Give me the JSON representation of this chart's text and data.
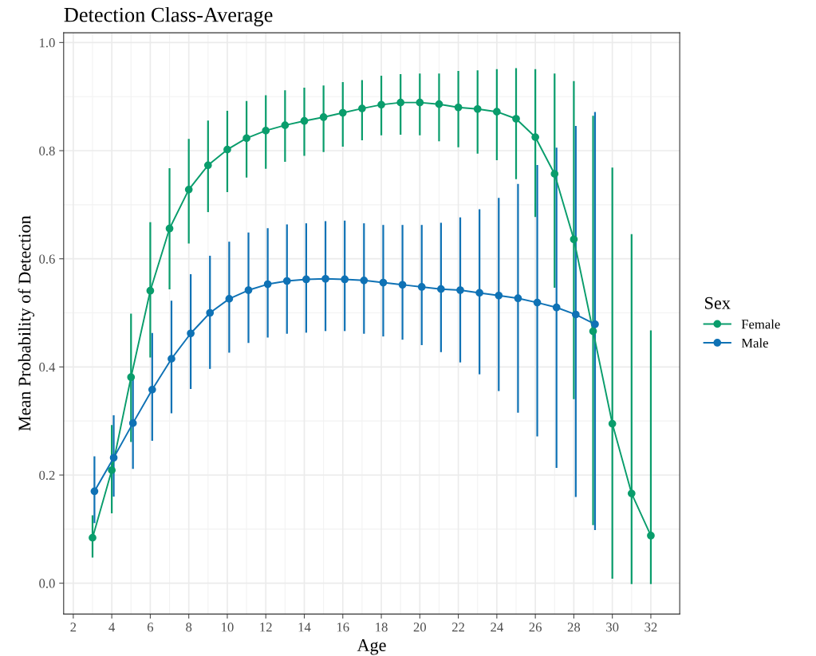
{
  "chart_data": {
    "type": "line",
    "title": "Detection Class-Average",
    "xlabel": "Age",
    "ylabel": "Mean Probability of Detection",
    "legend_title": "Sex",
    "xlim": [
      1.5,
      33.5
    ],
    "xticks": [
      2,
      4,
      6,
      8,
      10,
      12,
      14,
      16,
      18,
      20,
      22,
      24,
      26,
      28,
      30,
      32
    ],
    "ylim": [
      -0.057,
      1.018
    ],
    "yticks": [
      {
        "value": 0,
        "label": "0.0"
      },
      {
        "value": 0.2,
        "label": "0.2"
      },
      {
        "value": 0.4,
        "label": "0.4"
      },
      {
        "value": 0.6,
        "label": "0.6"
      },
      {
        "value": 0.8,
        "label": "0.8"
      },
      {
        "value": 1,
        "label": "1.0"
      }
    ],
    "grid": true,
    "legend": "right",
    "marker": "circle",
    "line_style": "solid",
    "series": [
      {
        "name": "Female",
        "color": "#0a9d6c",
        "x": [
          3,
          4,
          5,
          6,
          7,
          8,
          9,
          10,
          11,
          12,
          13,
          14,
          15,
          16,
          17,
          18,
          19,
          20,
          21,
          22,
          23,
          24,
          25,
          26,
          27,
          28,
          29,
          30,
          31,
          32
        ],
        "values": [
          0.084,
          0.209,
          0.381,
          0.541,
          0.656,
          0.728,
          0.773,
          0.802,
          0.823,
          0.837,
          0.847,
          0.855,
          0.862,
          0.87,
          0.878,
          0.885,
          0.889,
          0.889,
          0.886,
          0.88,
          0.877,
          0.872,
          0.859,
          0.825,
          0.757,
          0.636,
          0.466,
          0.295,
          0.166,
          0.088
        ],
        "errors": [
          [
            0.049,
            0.124
          ],
          [
            0.131,
            0.291
          ],
          [
            0.263,
            0.497
          ],
          [
            0.419,
            0.666
          ],
          [
            0.545,
            0.766
          ],
          [
            0.63,
            0.82
          ],
          [
            0.688,
            0.854
          ],
          [
            0.725,
            0.872
          ],
          [
            0.752,
            0.89
          ],
          [
            0.768,
            0.901
          ],
          [
            0.781,
            0.91
          ],
          [
            0.792,
            0.915
          ],
          [
            0.799,
            0.919
          ],
          [
            0.809,
            0.925
          ],
          [
            0.821,
            0.929
          ],
          [
            0.83,
            0.937
          ],
          [
            0.831,
            0.94
          ],
          [
            0.83,
            0.941
          ],
          [
            0.819,
            0.941
          ],
          [
            0.808,
            0.946
          ],
          [
            0.796,
            0.947
          ],
          [
            0.784,
            0.949
          ],
          [
            0.749,
            0.951
          ],
          [
            0.679,
            0.949
          ],
          [
            0.548,
            0.941
          ],
          [
            0.342,
            0.927
          ],
          [
            0.109,
            0.863
          ],
          [
            0.01,
            0.767
          ],
          [
            0.0,
            0.644
          ],
          [
            0.0,
            0.466
          ]
        ]
      },
      {
        "name": "Male",
        "color": "#0f72b5",
        "x": [
          3.1,
          4.1,
          5.1,
          6.1,
          7.1,
          8.1,
          9.1,
          10.1,
          11.1,
          12.1,
          13.1,
          14.1,
          15.1,
          16.1,
          17.1,
          18.1,
          19.1,
          20.1,
          21.1,
          22.1,
          23.1,
          24.1,
          25.1,
          26.1,
          27.1,
          28.1,
          29.1
        ],
        "values": [
          0.17,
          0.232,
          0.296,
          0.358,
          0.415,
          0.462,
          0.5,
          0.526,
          0.542,
          0.553,
          0.559,
          0.562,
          0.563,
          0.562,
          0.56,
          0.556,
          0.552,
          0.548,
          0.544,
          0.542,
          0.537,
          0.532,
          0.527,
          0.519,
          0.51,
          0.497,
          0.479
        ],
        "errors": [
          [
            0.113,
            0.233
          ],
          [
            0.162,
            0.309
          ],
          [
            0.213,
            0.38
          ],
          [
            0.265,
            0.461
          ],
          [
            0.316,
            0.521
          ],
          [
            0.361,
            0.57
          ],
          [
            0.398,
            0.604
          ],
          [
            0.428,
            0.63
          ],
          [
            0.446,
            0.647
          ],
          [
            0.456,
            0.655
          ],
          [
            0.463,
            0.662
          ],
          [
            0.465,
            0.664
          ],
          [
            0.468,
            0.668
          ],
          [
            0.468,
            0.669
          ],
          [
            0.463,
            0.664
          ],
          [
            0.458,
            0.661
          ],
          [
            0.452,
            0.661
          ],
          [
            0.442,
            0.661
          ],
          [
            0.429,
            0.665
          ],
          [
            0.41,
            0.675
          ],
          [
            0.388,
            0.69
          ],
          [
            0.357,
            0.711
          ],
          [
            0.317,
            0.737
          ],
          [
            0.273,
            0.772
          ],
          [
            0.215,
            0.804
          ],
          [
            0.161,
            0.844
          ],
          [
            0.1,
            0.87
          ]
        ]
      }
    ]
  }
}
